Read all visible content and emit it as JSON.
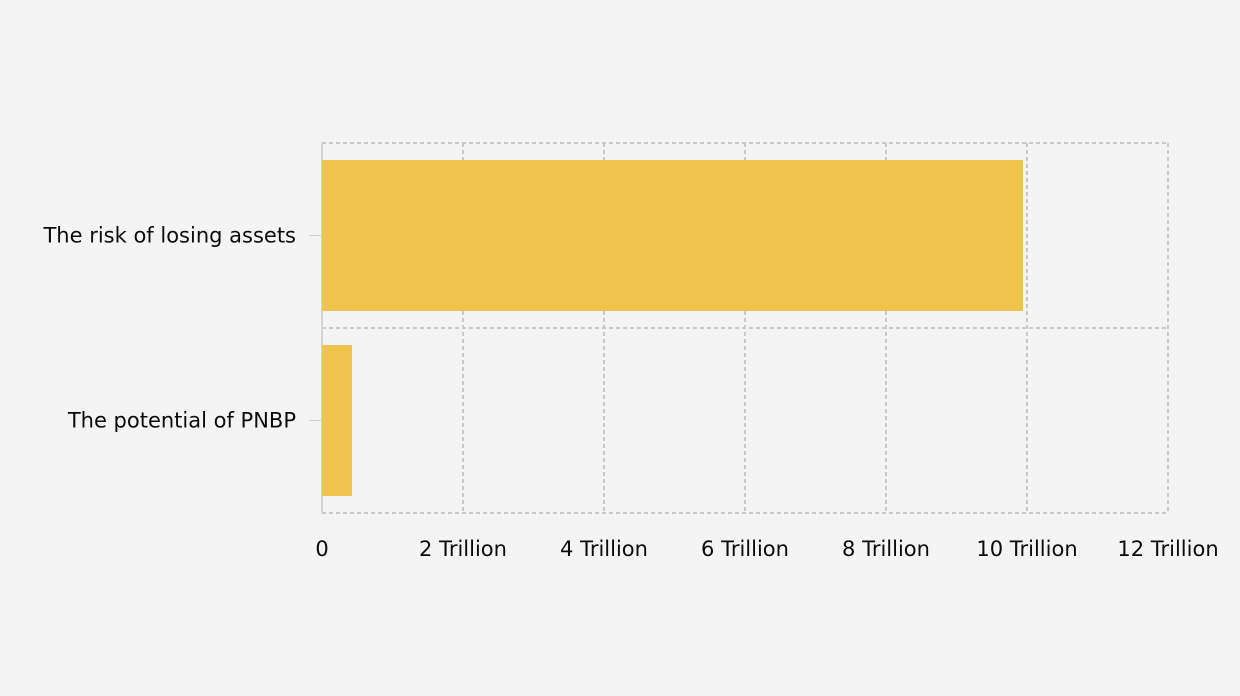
{
  "page": {
    "background_color": "#f4f4f5",
    "text_color": "#0b0b0b"
  },
  "chart_data": {
    "type": "bar",
    "orientation": "horizontal",
    "title": "",
    "categories": [
      "The risk of losing assets",
      "The potential of PNBP"
    ],
    "values": [
      9.95,
      0.42
    ],
    "value_unit": "Trillion",
    "xlabel": "",
    "ylabel": "",
    "xlim": [
      0,
      12
    ],
    "x_ticks": [
      0,
      2,
      4,
      6,
      8,
      10,
      12
    ],
    "x_tick_labels": [
      "0",
      "2 Trillion",
      "4 Trillion",
      "6 Trillion",
      "8 Trillion",
      "10 Trillion",
      "12 Trillion"
    ],
    "grid": "dashed",
    "legend": "none",
    "colors": {
      "bar": "#efc44c",
      "grid": "#c9c9c9",
      "axis": "#d4d4d4",
      "tick": "#cfcfcf"
    }
  }
}
